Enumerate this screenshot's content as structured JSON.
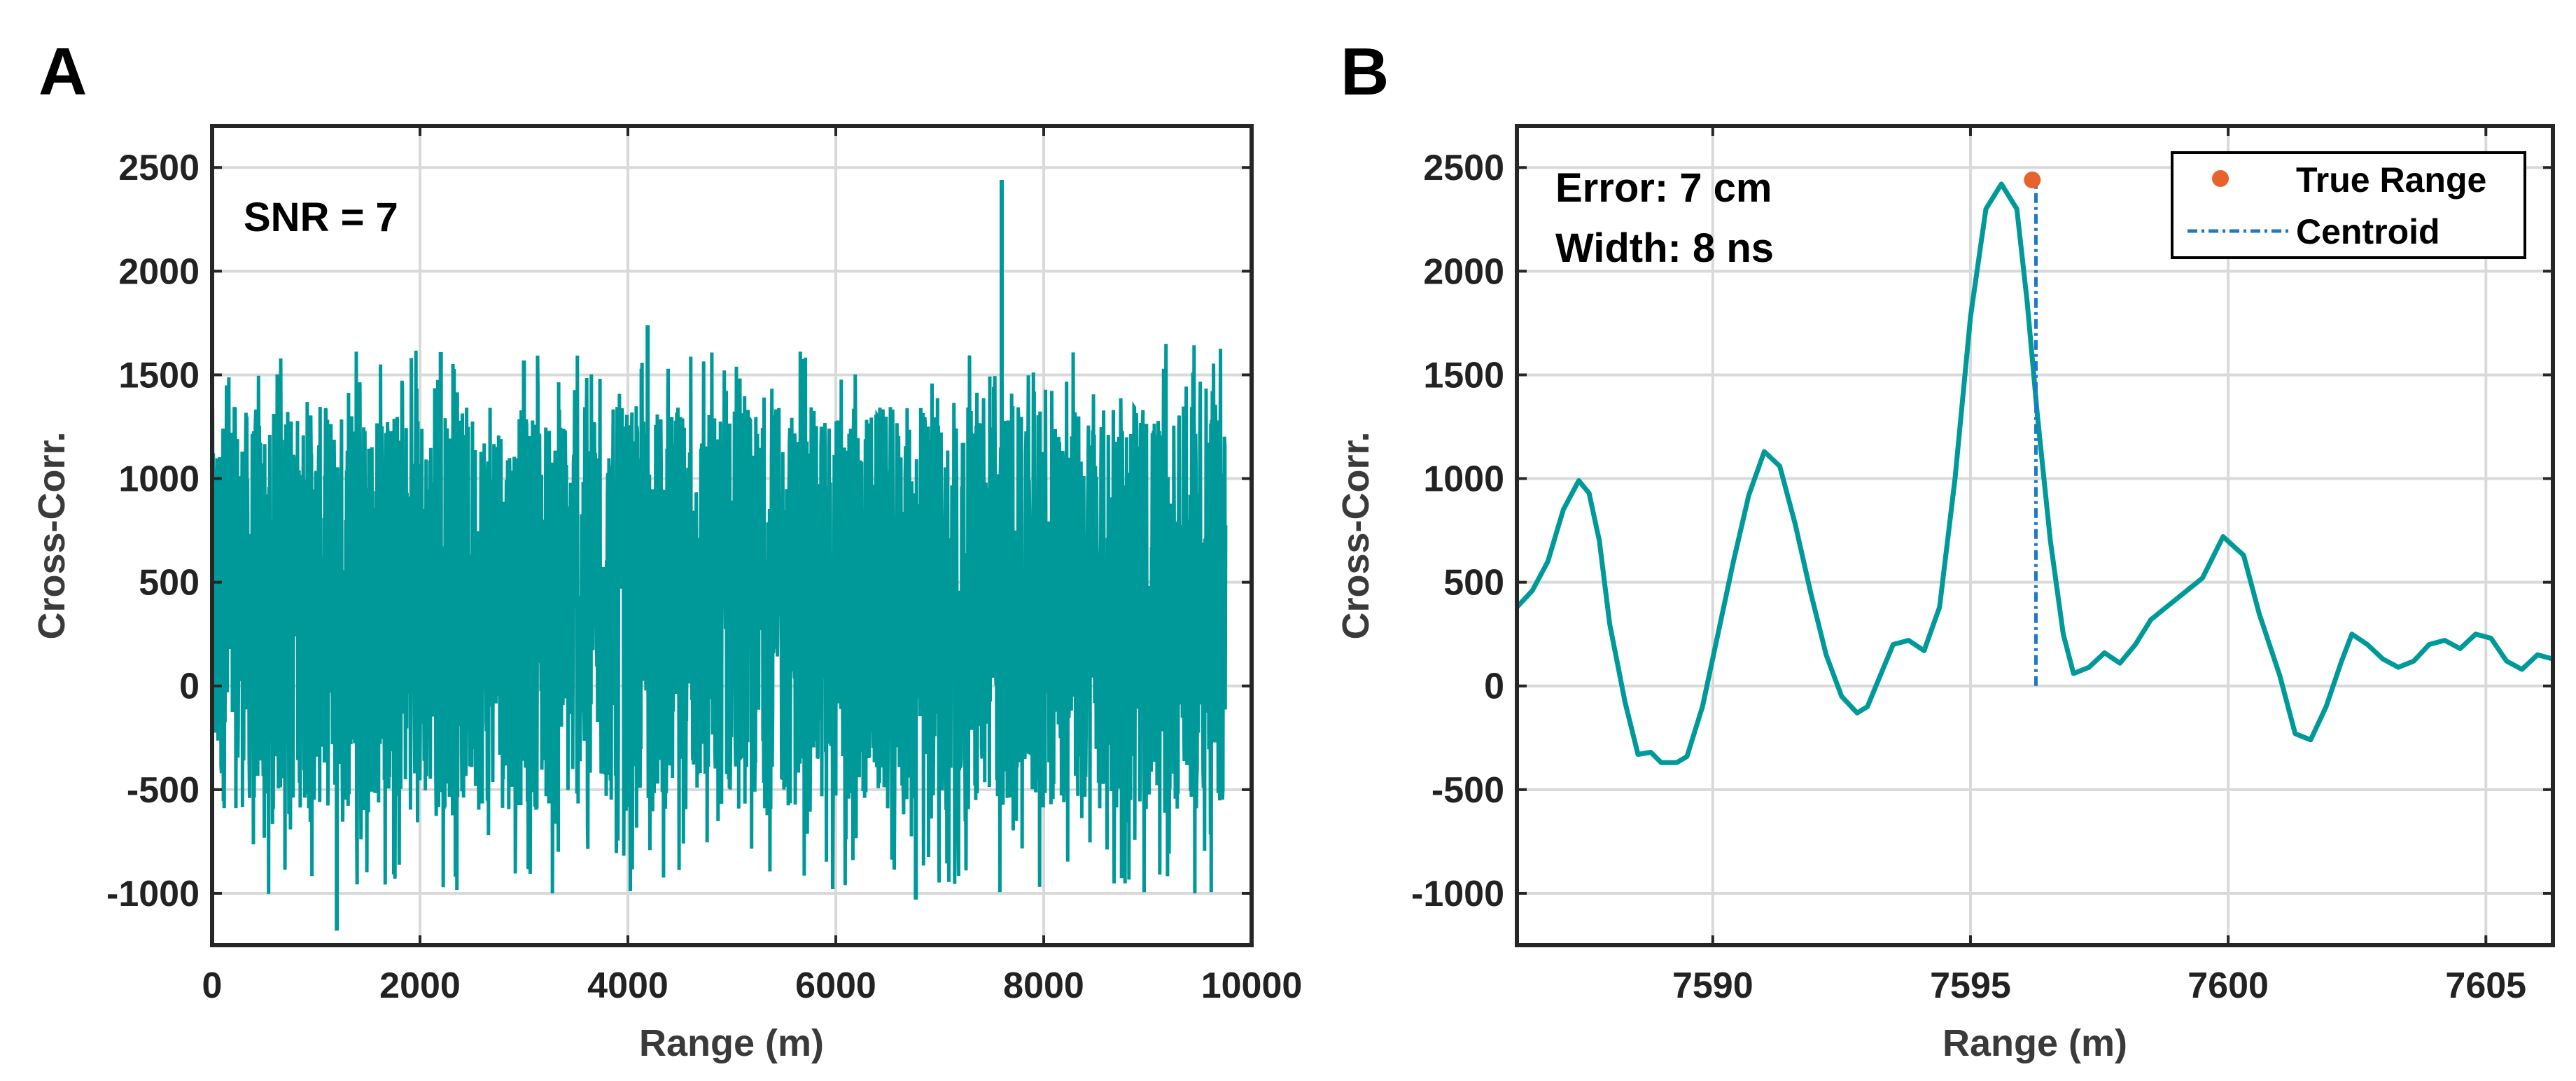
{
  "colors": {
    "signal": "#009999",
    "true_range": "#e8632a",
    "centroid": "#1f78c8"
  },
  "chart_data": [
    {
      "panel": "A",
      "type": "line",
      "xlabel": "Range (m)",
      "ylabel": "Cross-Corr.",
      "xlim": [
        0,
        10000
      ],
      "ylim": [
        -1250,
        2700
      ],
      "xticks": [
        0,
        2000,
        4000,
        6000,
        8000,
        10000
      ],
      "yticks": [
        -1000,
        -500,
        0,
        500,
        1000,
        1500,
        2000,
        2500
      ],
      "xtick_labels": [
        "0",
        "2000",
        "4000",
        "6000",
        "8000",
        "10000"
      ],
      "ytick_labels": [
        "-1000",
        "-500",
        "0",
        "500",
        "1000",
        "1500",
        "2000",
        "2500"
      ],
      "grid": true,
      "annotation": "SNR = 7",
      "noise": {
        "x_range": [
          0,
          9750
        ],
        "typical_min": -600,
        "typical_max": 1350,
        "extreme_min": -1180,
        "extreme_max": 1650
      },
      "spikes": [
        {
          "x": 7596,
          "y": 2440
        },
        {
          "x": 4190,
          "y": 1740
        },
        {
          "x": 2200,
          "y": 1610
        },
        {
          "x": 3000,
          "y": 1570
        },
        {
          "x": 1200,
          "y": -1180
        },
        {
          "x": 6770,
          "y": -1030
        }
      ]
    },
    {
      "panel": "B",
      "type": "line",
      "xlabel": "Range (m)",
      "ylabel": "Cross-Corr.",
      "xlim": [
        7586.2,
        7606.3
      ],
      "ylim": [
        -1250,
        2700
      ],
      "xticks": [
        7590,
        7595,
        7600,
        7605
      ],
      "yticks": [
        -1000,
        -500,
        0,
        500,
        1000,
        1500,
        2000,
        2500
      ],
      "xtick_labels": [
        "7590",
        "7595",
        "7600",
        "7605"
      ],
      "ytick_labels": [
        "-1000",
        "-500",
        "0",
        "500",
        "1000",
        "1500",
        "2000",
        "2500"
      ],
      "grid": true,
      "annotations": [
        "Error: 7 cm",
        "Width: 8 ns"
      ],
      "legend": {
        "position": "top-right",
        "entries": [
          "True Range",
          "Centroid"
        ]
      },
      "series": [
        {
          "name": "Cross-correlation",
          "x": [
            7586.2,
            7586.5,
            7586.8,
            7587.1,
            7587.4,
            7587.6,
            7587.8,
            7588.0,
            7588.3,
            7588.55,
            7588.8,
            7589.0,
            7589.3,
            7589.5,
            7589.8,
            7590.1,
            7590.4,
            7590.7,
            7591.0,
            7591.3,
            7591.6,
            7591.9,
            7592.2,
            7592.5,
            7592.8,
            7593.0,
            7593.2,
            7593.5,
            7593.8,
            7594.1,
            7594.4,
            7594.7,
            7595.0,
            7595.3,
            7595.6,
            7595.9,
            7596.1,
            7596.3,
            7596.55,
            7596.8,
            7597.0,
            7597.3,
            7597.6,
            7597.9,
            7598.2,
            7598.5,
            7598.8,
            7599.1,
            7599.5,
            7599.9,
            7600.3,
            7600.6,
            7601.0,
            7601.3,
            7601.6,
            7601.9,
            7602.2,
            7602.4,
            7602.7,
            7603.0,
            7603.3,
            7603.6,
            7603.9,
            7604.2,
            7604.5,
            7604.8,
            7605.1,
            7605.4,
            7605.7,
            7606.0,
            7606.3
          ],
          "y": [
            380,
            460,
            600,
            850,
            990,
            930,
            700,
            300,
            -80,
            -330,
            -320,
            -370,
            -370,
            -340,
            -100,
            250,
            600,
            920,
            1130,
            1060,
            780,
            450,
            150,
            -50,
            -130,
            -100,
            20,
            200,
            220,
            170,
            380,
            1000,
            1780,
            2300,
            2420,
            2300,
            1850,
            1300,
            700,
            250,
            60,
            90,
            160,
            110,
            200,
            320,
            380,
            440,
            520,
            720,
            630,
            350,
            50,
            -230,
            -260,
            -100,
            120,
            250,
            200,
            130,
            90,
            120,
            200,
            220,
            180,
            250,
            230,
            120,
            80,
            150,
            130
          ]
        }
      ],
      "true_range": {
        "x": 7596.2,
        "y": 2440
      },
      "centroid": {
        "x": 7596.27,
        "y_bottom": 0,
        "y_top": 2420
      }
    }
  ]
}
